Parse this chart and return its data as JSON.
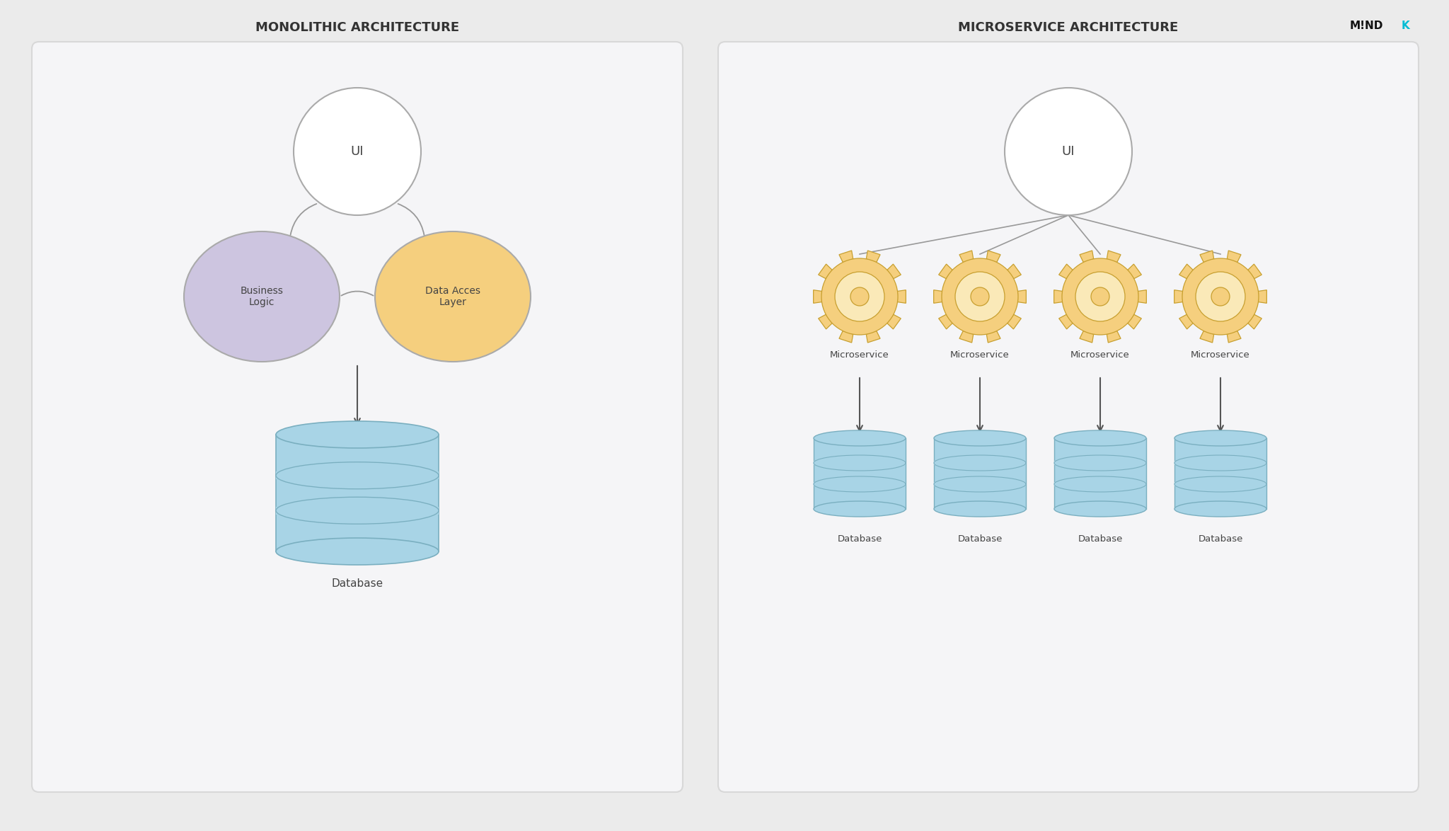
{
  "bg_color": "#ebebeb",
  "panel_color": "#f5f5f7",
  "panel_edge_color": "#d8d8d8",
  "white": "#ffffff",
  "light_blue": "#a8d4e6",
  "light_blue_dark": "#7aafc0",
  "purple_circle": "#cdc5e0",
  "orange_circle": "#f5cf7e",
  "orange_circle_inner": "#fae9b8",
  "arrow_color": "#555555",
  "line_color": "#999999",
  "text_color": "#444444",
  "title_color": "#333333",
  "mono_title": "MONOLITHIC ARCHITECTURE",
  "micro_title": "MICROSERVICE ARCHITECTURE",
  "brand_color_main": "#111111",
  "brand_color_accent": "#00bcd4",
  "ui_label": "UI",
  "business_label": "Business\nLogic",
  "data_access_label": "Data Acces\nLayer",
  "database_label": "Database",
  "microservice_label": "Microservice",
  "circle_edge": "#aaaaaa",
  "gear_edge": "#c8a030"
}
